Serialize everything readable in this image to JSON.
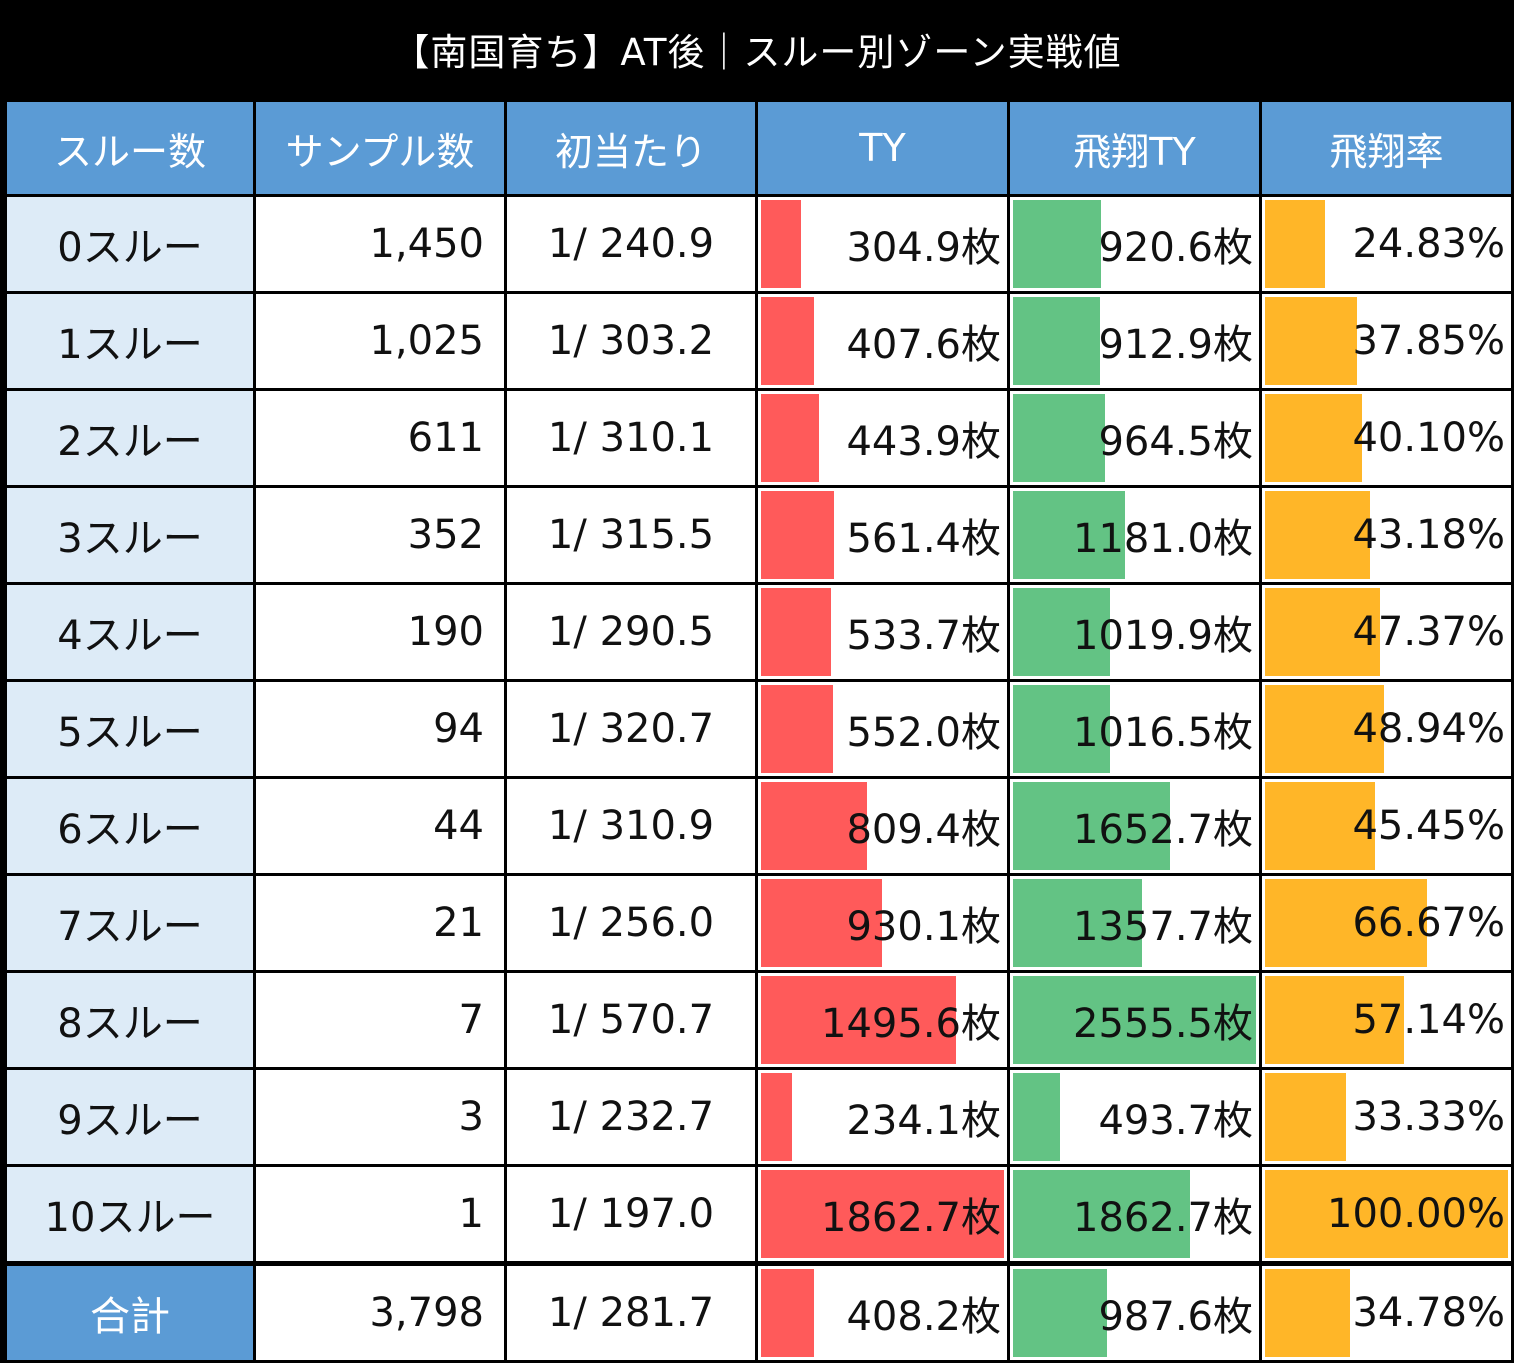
{
  "title": "【南国育ち】AT後｜スルー別ゾーン実戦値",
  "headers": [
    "スルー数",
    "サンプル数",
    "初当たり",
    "TY",
    "飛翔TY",
    "飛翔率"
  ],
  "colors": {
    "header": "#5b9bd5",
    "label_bg": "#ddebf7",
    "ty_bar": "#ff5a5a",
    "hishou_ty_bar": "#63c384",
    "rate_bar": "#ffb628"
  },
  "chart_data": {
    "type": "table",
    "title": "【南国育ち】AT後｜スルー別ゾーン実戦値",
    "columns": [
      "スルー数",
      "サンプル数",
      "初当たり",
      "TY",
      "飛翔TY",
      "飛翔率"
    ],
    "bar_scale_max": {
      "TY": 1862.7,
      "飛翔TY": 2555.5,
      "飛翔率": 100.0
    },
    "rows": [
      {
        "label": "0スルー",
        "samples": "1,450",
        "first_hit": "1/ 240.9",
        "ty": 304.9,
        "ty_text": "304.9枚",
        "hishou_ty": 920.6,
        "hishou_ty_text": "920.6枚",
        "rate": 24.83,
        "rate_text": "24.83%"
      },
      {
        "label": "1スルー",
        "samples": "1,025",
        "first_hit": "1/ 303.2",
        "ty": 407.6,
        "ty_text": "407.6枚",
        "hishou_ty": 912.9,
        "hishou_ty_text": "912.9枚",
        "rate": 37.85,
        "rate_text": "37.85%"
      },
      {
        "label": "2スルー",
        "samples": "611",
        "first_hit": "1/ 310.1",
        "ty": 443.9,
        "ty_text": "443.9枚",
        "hishou_ty": 964.5,
        "hishou_ty_text": "964.5枚",
        "rate": 40.1,
        "rate_text": "40.10%"
      },
      {
        "label": "3スルー",
        "samples": "352",
        "first_hit": "1/ 315.5",
        "ty": 561.4,
        "ty_text": "561.4枚",
        "hishou_ty": 1181.0,
        "hishou_ty_text": "1181.0枚",
        "rate": 43.18,
        "rate_text": "43.18%"
      },
      {
        "label": "4スルー",
        "samples": "190",
        "first_hit": "1/ 290.5",
        "ty": 533.7,
        "ty_text": "533.7枚",
        "hishou_ty": 1019.9,
        "hishou_ty_text": "1019.9枚",
        "rate": 47.37,
        "rate_text": "47.37%"
      },
      {
        "label": "5スルー",
        "samples": "94",
        "first_hit": "1/ 320.7",
        "ty": 552.0,
        "ty_text": "552.0枚",
        "hishou_ty": 1016.5,
        "hishou_ty_text": "1016.5枚",
        "rate": 48.94,
        "rate_text": "48.94%"
      },
      {
        "label": "6スルー",
        "samples": "44",
        "first_hit": "1/ 310.9",
        "ty": 809.4,
        "ty_text": "809.4枚",
        "hishou_ty": 1652.7,
        "hishou_ty_text": "1652.7枚",
        "rate": 45.45,
        "rate_text": "45.45%"
      },
      {
        "label": "7スルー",
        "samples": "21",
        "first_hit": "1/ 256.0",
        "ty": 930.1,
        "ty_text": "930.1枚",
        "hishou_ty": 1357.7,
        "hishou_ty_text": "1357.7枚",
        "rate": 66.67,
        "rate_text": "66.67%"
      },
      {
        "label": "8スルー",
        "samples": "7",
        "first_hit": "1/ 570.7",
        "ty": 1495.6,
        "ty_text": "1495.6枚",
        "hishou_ty": 2555.5,
        "hishou_ty_text": "2555.5枚",
        "rate": 57.14,
        "rate_text": "57.14%"
      },
      {
        "label": "9スルー",
        "samples": "3",
        "first_hit": "1/ 232.7",
        "ty": 234.1,
        "ty_text": "234.1枚",
        "hishou_ty": 493.7,
        "hishou_ty_text": "493.7枚",
        "rate": 33.33,
        "rate_text": "33.33%"
      },
      {
        "label": "10スルー",
        "samples": "1",
        "first_hit": "1/ 197.0",
        "ty": 1862.7,
        "ty_text": "1862.7枚",
        "hishou_ty": 1862.7,
        "hishou_ty_text": "1862.7枚",
        "rate": 100.0,
        "rate_text": "100.00%"
      }
    ],
    "total": {
      "label": "合計",
      "samples": "3,798",
      "first_hit": "1/ 281.7",
      "ty": 408.2,
      "ty_text": "408.2枚",
      "hishou_ty": 987.6,
      "hishou_ty_text": "987.6枚",
      "rate": 34.78,
      "rate_text": "34.78%"
    }
  }
}
